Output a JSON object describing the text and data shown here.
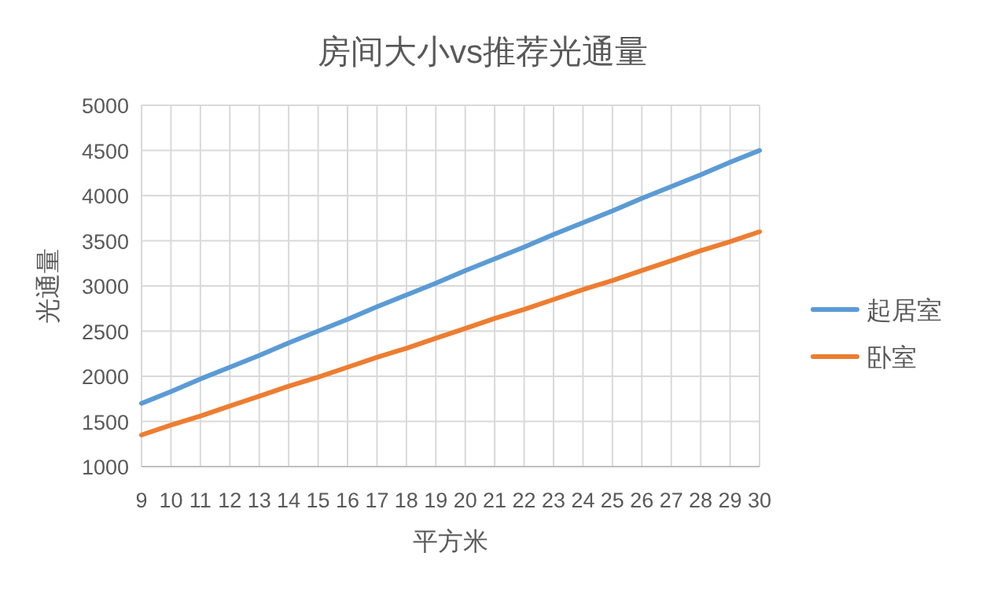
{
  "chart_data": {
    "type": "line",
    "title": "房间大小vs推荐光通量",
    "xlabel": "平方米",
    "ylabel": "光通量",
    "x": [
      9,
      10,
      11,
      12,
      13,
      14,
      15,
      16,
      17,
      18,
      19,
      20,
      21,
      22,
      23,
      24,
      25,
      26,
      27,
      28,
      29,
      30
    ],
    "series": [
      {
        "name": "起居室",
        "color": "#5b9bd5",
        "values": [
          1700,
          1830,
          1970,
          2100,
          2230,
          2370,
          2500,
          2630,
          2770,
          2900,
          3030,
          3170,
          3300,
          3430,
          3570,
          3700,
          3830,
          3970,
          4100,
          4230,
          4370,
          4500
        ]
      },
      {
        "name": "卧室",
        "color": "#ed7d31",
        "values": [
          1350,
          1460,
          1560,
          1670,
          1780,
          1890,
          1990,
          2100,
          2210,
          2310,
          2420,
          2530,
          2640,
          2740,
          2850,
          2960,
          3060,
          3170,
          3280,
          3390,
          3490,
          3600
        ]
      }
    ],
    "xlim": [
      9,
      30
    ],
    "xticks": [
      9,
      10,
      11,
      12,
      13,
      14,
      15,
      16,
      17,
      18,
      19,
      20,
      21,
      22,
      23,
      24,
      25,
      26,
      27,
      28,
      29,
      30
    ],
    "ylim": [
      1000,
      5000
    ],
    "yticks": [
      1000,
      1500,
      2000,
      2500,
      3000,
      3500,
      4000,
      4500,
      5000
    ],
    "grid": true,
    "legend": "right",
    "line_style": "solid"
  }
}
